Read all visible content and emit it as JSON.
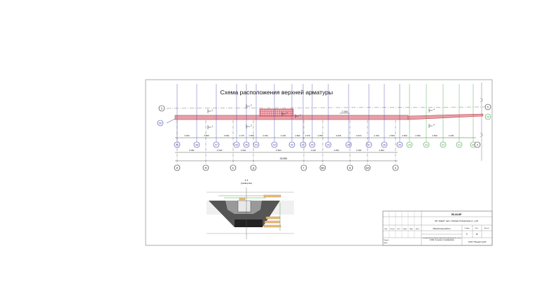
{
  "drawing": {
    "title": "Схема расположения верхней арматуры",
    "colors": {
      "beam": "#e06070",
      "hatch": "#d02030",
      "axis_blue": "#3a3aa8",
      "axis_green": "#3a9a3a",
      "frame": "#888888"
    },
    "axes_top_blue": [
      "49",
      "48",
      "47",
      "46",
      "45",
      "44",
      "43",
      "42",
      "41",
      "40",
      "39",
      "38",
      "37",
      "36",
      "35"
    ],
    "axes_top_green": [
      "34",
      "33",
      "32",
      "31",
      "30"
    ],
    "axes_letters": [
      "И",
      "Ж",
      "Е",
      "Д",
      "Г",
      "ВА",
      "В",
      "БА",
      "Б"
    ],
    "dims_top": [
      "3 400",
      "3 500",
      "3 500",
      "1 175",
      "1 550",
      "3 150",
      "3 100",
      "1 800",
      "1 570",
      "2 050",
      "3 045",
      "3 070",
      "2 150",
      "2 550",
      "2 500",
      "2 500",
      "2 500",
      "2 400"
    ],
    "dims_mid": [
      "3 280",
      "4 500",
      "3 500",
      "8 800",
      "3 200",
      "4 650",
      "3 000",
      "4 800"
    ],
    "dim_total": "26 850",
    "left_axes": [
      "5",
      "5б"
    ],
    "right_axes": [
      "5",
      "29",
      "4"
    ],
    "section_marks": [
      "1",
      "1",
      "2",
      "2",
      "3",
      "3",
      "4",
      "4"
    ],
    "level_mark": "2.050",
    "section": {
      "title": "1-1",
      "subtitle": "(развертка)"
    }
  },
  "title_block": {
    "code": "05-18-КР",
    "project": "ЖК \"Новый\", корп. 1 Москва, Пограничная ул., д.46",
    "stage_headers": [
      "Стадия",
      "Лист",
      "Листов"
    ],
    "stage_values": [
      "Р",
      "18",
      ""
    ],
    "sheet_name": "Монолитные работы",
    "drawing_name": "Схема расположения верхней арматуры ФП-1 (М 1:100). Сечение 1-1 (развертка)",
    "company": "ООО \"Проектстрой\"",
    "row_headers": [
      "Изм.",
      "Кол.уч",
      "Лист",
      "№док.",
      "Подп.",
      "Дата"
    ],
    "roles": [
      "Разраб.",
      "Пров."
    ]
  }
}
